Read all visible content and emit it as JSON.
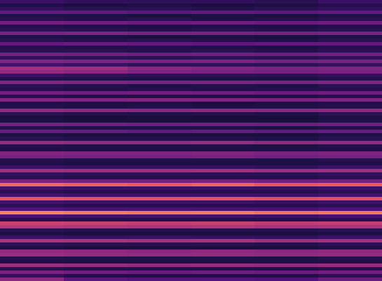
{
  "chart_data": {
    "type": "heatmap",
    "color": "magma",
    "tick_labels": false,
    "cells": [
      [
        0.2,
        0.18,
        0.17,
        0.18,
        0.16,
        0.2
      ],
      [
        0.14,
        0.12,
        0.13,
        0.12,
        0.13,
        0.15
      ],
      [
        0.18,
        0.16,
        0.17,
        0.15,
        0.16,
        0.18
      ],
      [
        0.3,
        0.3,
        0.28,
        0.3,
        0.29,
        0.3
      ],
      [
        0.14,
        0.13,
        0.12,
        0.13,
        0.12,
        0.14
      ],
      [
        0.16,
        0.15,
        0.16,
        0.14,
        0.15,
        0.16
      ],
      [
        0.34,
        0.33,
        0.32,
        0.33,
        0.32,
        0.33
      ],
      [
        0.15,
        0.14,
        0.13,
        0.14,
        0.13,
        0.15
      ],
      [
        0.17,
        0.16,
        0.15,
        0.16,
        0.15,
        0.16
      ],
      [
        0.36,
        0.37,
        0.35,
        0.36,
        0.35,
        0.36
      ],
      [
        0.14,
        0.13,
        0.12,
        0.13,
        0.12,
        0.14
      ],
      [
        0.16,
        0.15,
        0.16,
        0.15,
        0.14,
        0.16
      ],
      [
        0.3,
        0.31,
        0.3,
        0.29,
        0.3,
        0.3
      ],
      [
        0.15,
        0.14,
        0.15,
        0.14,
        0.13,
        0.15
      ],
      [
        0.16,
        0.16,
        0.15,
        0.16,
        0.15,
        0.17
      ],
      [
        0.35,
        0.34,
        0.33,
        0.34,
        0.33,
        0.34
      ],
      [
        0.18,
        0.17,
        0.16,
        0.17,
        0.16,
        0.18
      ],
      [
        0.38,
        0.37,
        0.36,
        0.37,
        0.35,
        0.36
      ],
      [
        0.22,
        0.2,
        0.18,
        0.18,
        0.17,
        0.19
      ],
      [
        0.46,
        0.45,
        0.4,
        0.38,
        0.36,
        0.37
      ],
      [
        0.42,
        0.4,
        0.37,
        0.36,
        0.35,
        0.36
      ],
      [
        0.2,
        0.18,
        0.17,
        0.17,
        0.16,
        0.18
      ],
      [
        0.15,
        0.14,
        0.14,
        0.13,
        0.13,
        0.15
      ],
      [
        0.38,
        0.37,
        0.36,
        0.37,
        0.36,
        0.37
      ],
      [
        0.16,
        0.15,
        0.14,
        0.15,
        0.14,
        0.16
      ],
      [
        0.15,
        0.14,
        0.15,
        0.14,
        0.15,
        0.15
      ],
      [
        0.34,
        0.33,
        0.34,
        0.33,
        0.32,
        0.33
      ],
      [
        0.15,
        0.14,
        0.13,
        0.14,
        0.13,
        0.15
      ],
      [
        0.38,
        0.37,
        0.38,
        0.37,
        0.36,
        0.37
      ],
      [
        0.14,
        0.13,
        0.13,
        0.12,
        0.13,
        0.14
      ],
      [
        0.15,
        0.14,
        0.15,
        0.14,
        0.14,
        0.15
      ],
      [
        0.42,
        0.41,
        0.4,
        0.41,
        0.4,
        0.41
      ],
      [
        0.16,
        0.15,
        0.14,
        0.15,
        0.14,
        0.16
      ],
      [
        0.12,
        0.11,
        0.12,
        0.11,
        0.11,
        0.13
      ],
      [
        0.13,
        0.12,
        0.12,
        0.12,
        0.12,
        0.14
      ],
      [
        0.35,
        0.34,
        0.33,
        0.34,
        0.33,
        0.34
      ],
      [
        0.15,
        0.14,
        0.14,
        0.14,
        0.13,
        0.15
      ],
      [
        0.32,
        0.31,
        0.3,
        0.31,
        0.3,
        0.31
      ],
      [
        0.13,
        0.12,
        0.12,
        0.12,
        0.12,
        0.14
      ],
      [
        0.16,
        0.15,
        0.15,
        0.15,
        0.14,
        0.16
      ],
      [
        0.43,
        0.42,
        0.42,
        0.43,
        0.41,
        0.42
      ],
      [
        0.15,
        0.14,
        0.14,
        0.14,
        0.13,
        0.15
      ],
      [
        0.14,
        0.13,
        0.13,
        0.13,
        0.13,
        0.14
      ],
      [
        0.38,
        0.37,
        0.37,
        0.38,
        0.36,
        0.37
      ],
      [
        0.36,
        0.35,
        0.35,
        0.36,
        0.34,
        0.35
      ],
      [
        0.15,
        0.14,
        0.14,
        0.14,
        0.14,
        0.15
      ],
      [
        0.14,
        0.13,
        0.13,
        0.13,
        0.13,
        0.14
      ],
      [
        0.2,
        0.19,
        0.19,
        0.19,
        0.18,
        0.2
      ],
      [
        0.46,
        0.45,
        0.45,
        0.46,
        0.44,
        0.45
      ],
      [
        0.18,
        0.17,
        0.17,
        0.17,
        0.16,
        0.18
      ],
      [
        0.16,
        0.15,
        0.15,
        0.15,
        0.15,
        0.16
      ],
      [
        0.36,
        0.35,
        0.35,
        0.36,
        0.34,
        0.35
      ],
      [
        0.68,
        0.66,
        0.65,
        0.67,
        0.64,
        0.65
      ],
      [
        0.22,
        0.2,
        0.2,
        0.2,
        0.19,
        0.21
      ],
      [
        0.16,
        0.15,
        0.15,
        0.15,
        0.15,
        0.16
      ],
      [
        0.22,
        0.21,
        0.21,
        0.21,
        0.2,
        0.22
      ],
      [
        0.64,
        0.62,
        0.62,
        0.63,
        0.61,
        0.62
      ],
      [
        0.22,
        0.2,
        0.2,
        0.2,
        0.19,
        0.21
      ],
      [
        0.16,
        0.15,
        0.15,
        0.15,
        0.15,
        0.16
      ],
      [
        0.25,
        0.24,
        0.24,
        0.24,
        0.23,
        0.25
      ],
      [
        0.74,
        0.72,
        0.71,
        0.72,
        0.7,
        0.71
      ],
      [
        0.24,
        0.22,
        0.22,
        0.22,
        0.21,
        0.23
      ],
      [
        0.15,
        0.14,
        0.14,
        0.14,
        0.14,
        0.15
      ],
      [
        0.56,
        0.55,
        0.54,
        0.55,
        0.53,
        0.54
      ],
      [
        0.5,
        0.49,
        0.48,
        0.49,
        0.47,
        0.48
      ],
      [
        0.16,
        0.15,
        0.15,
        0.15,
        0.15,
        0.16
      ],
      [
        0.13,
        0.12,
        0.12,
        0.12,
        0.12,
        0.13
      ],
      [
        0.2,
        0.19,
        0.19,
        0.19,
        0.18,
        0.2
      ],
      [
        0.48,
        0.47,
        0.46,
        0.47,
        0.45,
        0.46
      ],
      [
        0.17,
        0.16,
        0.16,
        0.16,
        0.15,
        0.17
      ],
      [
        0.13,
        0.12,
        0.12,
        0.12,
        0.12,
        0.13
      ],
      [
        0.42,
        0.41,
        0.4,
        0.41,
        0.4,
        0.41
      ],
      [
        0.44,
        0.43,
        0.42,
        0.43,
        0.42,
        0.43
      ],
      [
        0.15,
        0.14,
        0.14,
        0.14,
        0.13,
        0.15
      ],
      [
        0.14,
        0.13,
        0.13,
        0.13,
        0.13,
        0.14
      ],
      [
        0.44,
        0.43,
        0.42,
        0.43,
        0.42,
        0.43
      ],
      [
        0.15,
        0.14,
        0.14,
        0.14,
        0.13,
        0.15
      ],
      [
        0.36,
        0.33,
        0.32,
        0.33,
        0.32,
        0.34
      ],
      [
        0.18,
        0.14,
        0.13,
        0.13,
        0.13,
        0.16
      ],
      [
        0.4,
        0.28,
        0.26,
        0.26,
        0.25,
        0.32
      ]
    ]
  }
}
